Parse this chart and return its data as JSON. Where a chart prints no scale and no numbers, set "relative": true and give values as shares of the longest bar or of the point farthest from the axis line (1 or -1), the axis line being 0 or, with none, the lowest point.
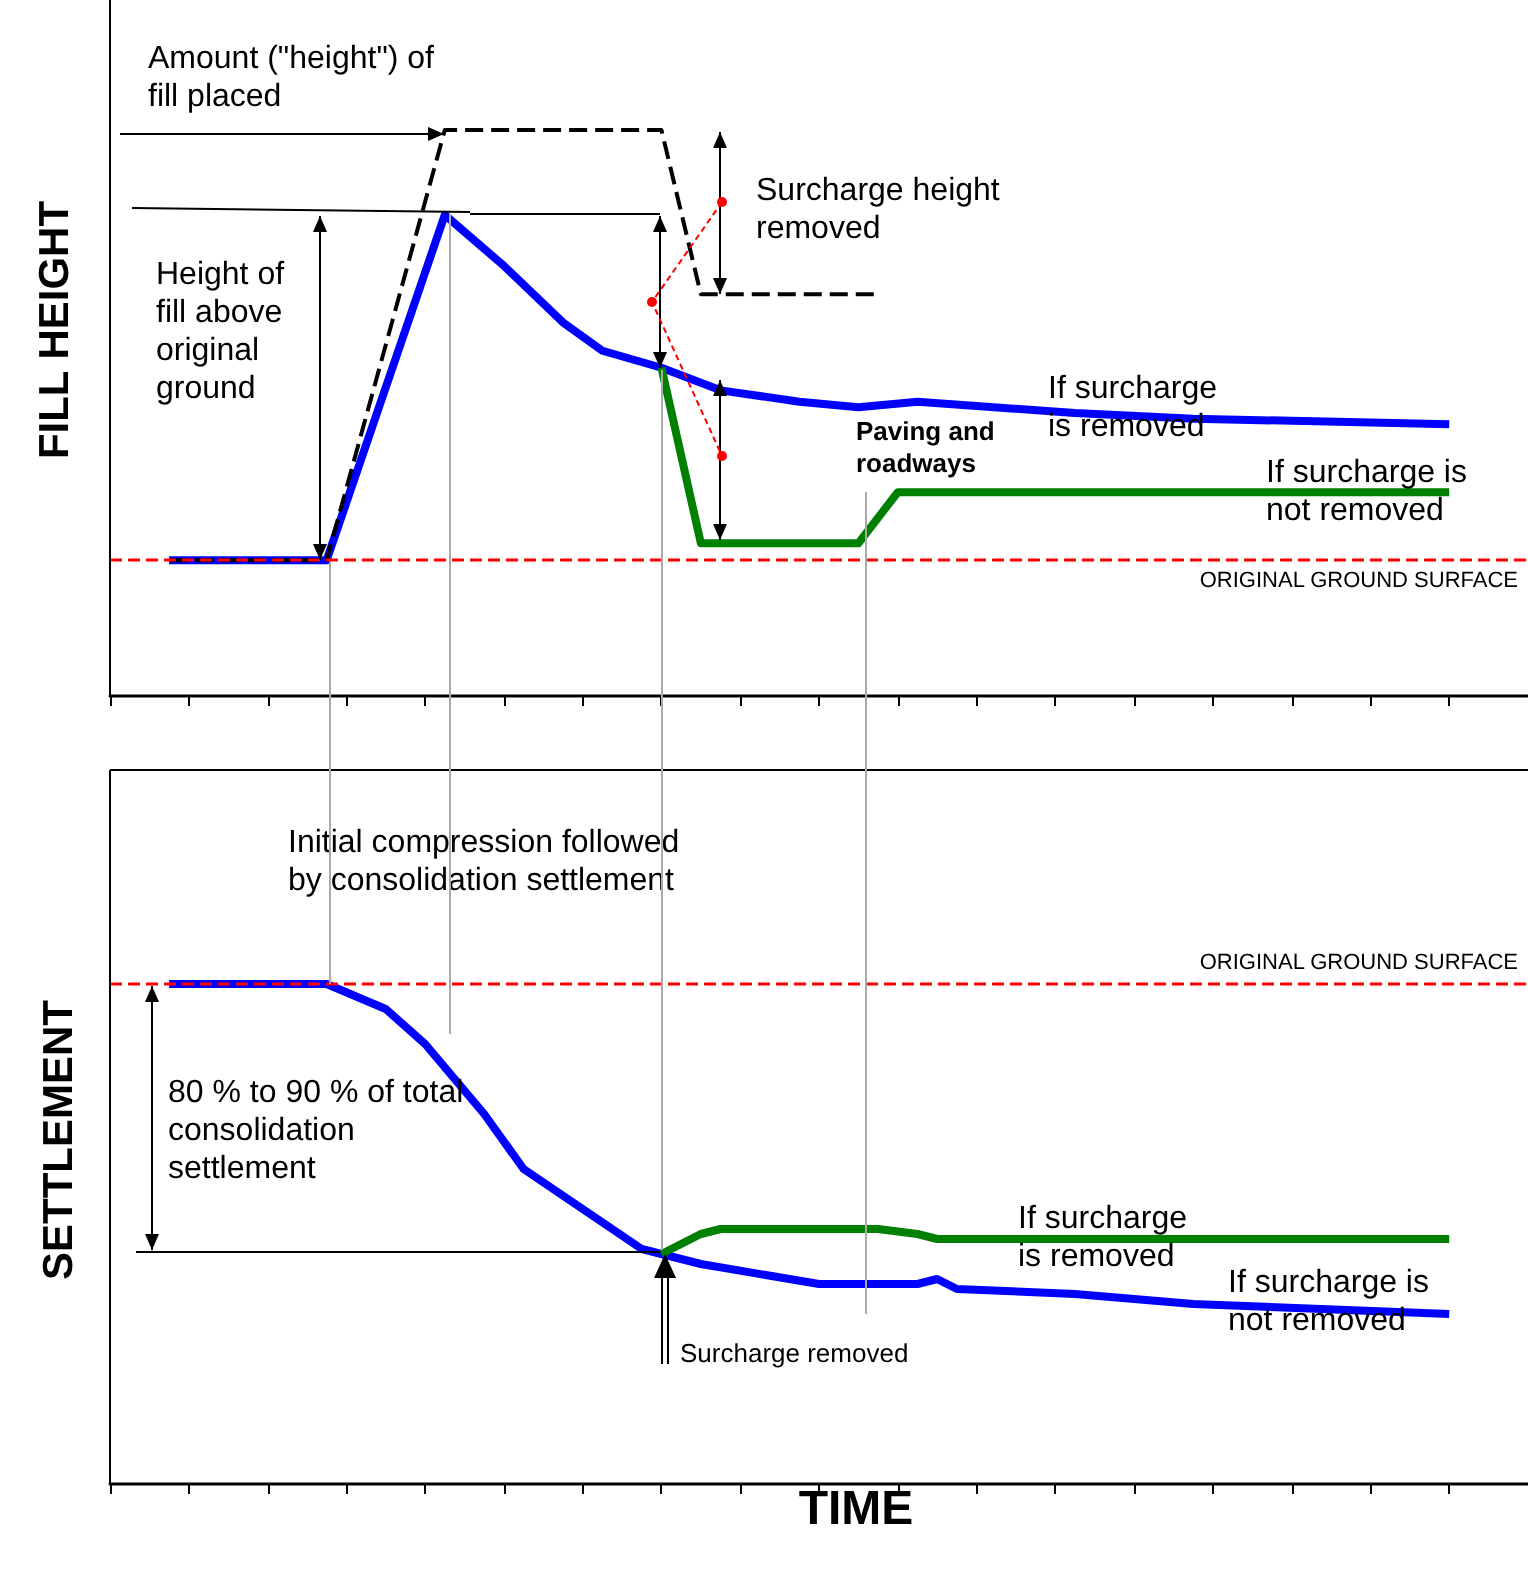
{
  "chart_data": [
    {
      "type": "line",
      "relative": true,
      "ylabel": "FILL HEIGHT",
      "tick_labels": false,
      "grid": false,
      "marker": "none",
      "categories": [
        null,
        null,
        null,
        null,
        null,
        null,
        null,
        null,
        null,
        null,
        null,
        null,
        null,
        null,
        null,
        null,
        null,
        null,
        null,
        null,
        null,
        null,
        null,
        null,
        null,
        null,
        null,
        null,
        null,
        null,
        null,
        null,
        null,
        null,
        null,
        null,
        null,
        null,
        null,
        null,
        null,
        null,
        null,
        null,
        null,
        null,
        null,
        null,
        null,
        null,
        null,
        null,
        null,
        null,
        null,
        null,
        null,
        null,
        null,
        null,
        null,
        null,
        null,
        null,
        null,
        null,
        null,
        null,
        null,
        null,
        null,
        null,
        null
      ],
      "series": [
        {
          "color": "#000000",
          "line_style": "dashed",
          "values": [
            null,
            null,
            null,
            0.24,
            null,
            null,
            null,
            null,
            null,
            null,
            null,
            0.24,
            null,
            null,
            null,
            null,
            null,
            1,
            null,
            null,
            null,
            null,
            null,
            null,
            null,
            null,
            null,
            null,
            1,
            null,
            0.71,
            null,
            null,
            null,
            null,
            null,
            null,
            null,
            null,
            0.71,
            null,
            null,
            null,
            null,
            null,
            null,
            null,
            null,
            null,
            null,
            null,
            null,
            null,
            null,
            null,
            null,
            null,
            null,
            null,
            null,
            null,
            null,
            null,
            null,
            null,
            null,
            null,
            null,
            null,
            null,
            null,
            null,
            null
          ]
        },
        {
          "color": "#0000ff",
          "values": [
            null,
            null,
            null,
            0.24,
            null,
            null,
            null,
            null,
            null,
            null,
            null,
            0.24,
            null,
            null,
            null,
            null,
            null,
            0.85,
            null,
            null,
            0.76,
            null,
            null,
            0.66,
            null,
            0.61,
            null,
            null,
            0.58,
            null,
            null,
            0.54,
            null,
            null,
            null,
            0.52,
            null,
            null,
            0.51,
            null,
            null,
            0.52,
            null,
            null,
            null,
            null,
            null,
            null,
            null,
            0.5,
            null,
            null,
            null,
            null,
            null,
            0.49,
            null,
            null,
            null,
            null,
            null,
            null,
            null,
            null,
            null,
            null,
            null,
            null,
            0.48,
            null,
            null,
            null,
            null
          ]
        },
        {
          "color": "#008000",
          "values": [
            null,
            null,
            null,
            null,
            null,
            null,
            null,
            null,
            null,
            null,
            null,
            null,
            null,
            null,
            null,
            null,
            null,
            null,
            null,
            null,
            null,
            null,
            null,
            null,
            null,
            null,
            null,
            null,
            0.58,
            null,
            0.27,
            null,
            null,
            null,
            null,
            null,
            null,
            null,
            0.27,
            null,
            0.36,
            null,
            null,
            null,
            null,
            null,
            null,
            null,
            null,
            null,
            null,
            null,
            null,
            null,
            null,
            null,
            null,
            null,
            null,
            null,
            null,
            null,
            null,
            null,
            null,
            null,
            null,
            null,
            0.36,
            null,
            null,
            null,
            null
          ]
        }
      ],
      "ref_lines": [
        {
          "axis": "y",
          "value": 0.24,
          "label": "ORIGINAL GROUND SURFACE",
          "color": "#ff0000",
          "line_style": "dashed"
        }
      ],
      "annotations": [
        "Amount (\"height\") of fill placed",
        "Height of fill above original ground",
        "Surcharge height removed",
        "Paving and roadways",
        "If surcharge is removed",
        "If surcharge is not removed"
      ]
    },
    {
      "type": "line",
      "relative": true,
      "ylabel": "SETTLEMENT",
      "xlabel": "TIME",
      "tick_labels": false,
      "grid": false,
      "marker": "none",
      "categories": [
        null,
        null,
        null,
        null,
        null,
        null,
        null,
        null,
        null,
        null,
        null,
        null,
        null,
        null,
        null,
        null,
        null,
        null,
        null,
        null,
        null,
        null,
        null,
        null,
        null,
        null,
        null,
        null,
        null,
        null,
        null,
        null,
        null,
        null,
        null,
        null,
        null,
        null,
        null,
        null,
        null,
        null,
        null,
        null,
        null,
        null,
        null,
        null,
        null,
        null,
        null,
        null,
        null,
        null,
        null,
        null,
        null,
        null,
        null,
        null,
        null,
        null,
        null,
        null,
        null,
        null,
        null,
        null,
        null,
        null,
        null,
        null,
        null
      ],
      "series": [
        {
          "color": "#0000ff",
          "values": [
            null,
            null,
            null,
            1,
            null,
            null,
            null,
            null,
            null,
            null,
            null,
            1,
            null,
            null,
            0.95,
            null,
            0.88,
            null,
            null,
            0.74,
            null,
            0.63,
            null,
            null,
            0.55,
            null,
            null,
            0.47,
            0.46,
            null,
            0.44,
            null,
            null,
            null,
            null,
            null,
            0.4,
            null,
            null,
            null,
            null,
            0.4,
            0.41,
            0.39,
            null,
            null,
            null,
            null,
            null,
            0.38,
            null,
            null,
            null,
            null,
            null,
            0.36,
            null,
            null,
            null,
            null,
            null,
            null,
            null,
            null,
            null,
            null,
            null,
            null,
            0.34,
            null,
            null,
            null,
            null
          ]
        },
        {
          "color": "#008000",
          "values": [
            null,
            null,
            null,
            null,
            null,
            null,
            null,
            null,
            null,
            null,
            null,
            null,
            null,
            null,
            null,
            null,
            null,
            null,
            null,
            null,
            null,
            null,
            null,
            null,
            null,
            null,
            null,
            null,
            0.46,
            null,
            0.5,
            0.51,
            null,
            null,
            null,
            null,
            null,
            null,
            null,
            0.51,
            null,
            0.5,
            0.49,
            null,
            null,
            null,
            null,
            null,
            null,
            null,
            null,
            null,
            null,
            null,
            null,
            null,
            null,
            null,
            null,
            null,
            null,
            null,
            null,
            null,
            null,
            null,
            null,
            null,
            0.49,
            null,
            null,
            null,
            null
          ]
        }
      ],
      "ref_lines": [
        {
          "axis": "y",
          "value": 1,
          "label": "ORIGINAL GROUND SURFACE",
          "color": "#ff0000",
          "line_style": "dashed"
        }
      ],
      "annotations": [
        "Initial compression followed by consolidation settlement",
        "80 % to 90 % of total consolidation settlement",
        "If surcharge is removed",
        "If surcharge is not removed",
        "Surcharge removed"
      ]
    }
  ]
}
